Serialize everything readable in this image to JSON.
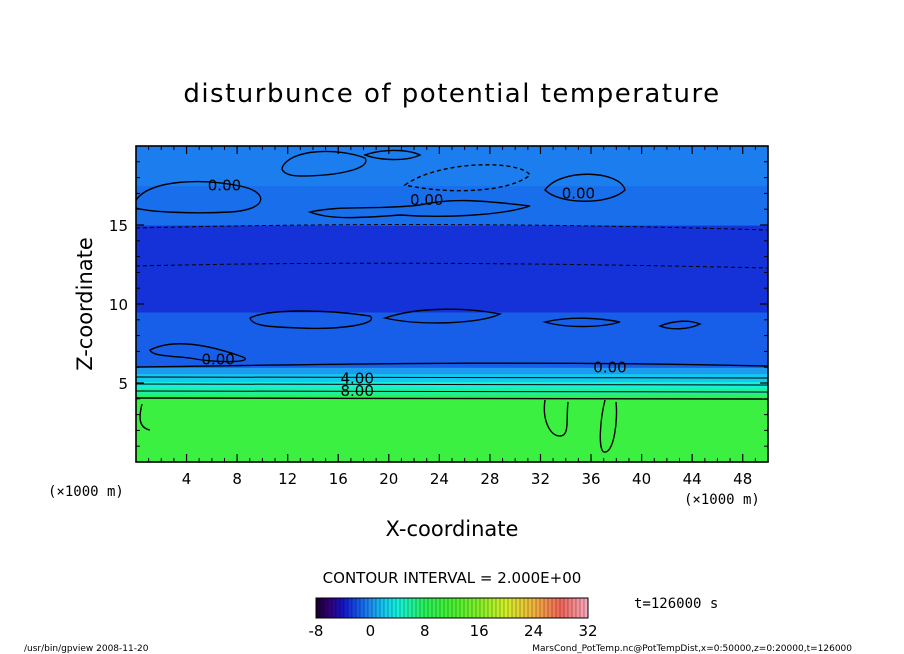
{
  "chart_data": {
    "type": "heatmap",
    "title": "disturbunce of potential temperature",
    "xlabel": "X-coordinate",
    "ylabel": "Z-coordinate",
    "x_unit": "(×1000 m)",
    "xlim": [
      0,
      50
    ],
    "ylim": [
      0,
      20
    ],
    "x_ticks": [
      4,
      8,
      12,
      16,
      20,
      24,
      28,
      32,
      36,
      40,
      44,
      48
    ],
    "y_ticks": [
      5,
      10,
      15
    ],
    "grid": false,
    "contour_interval_text": "CONTOUR INTERVAL = 2.000E+00",
    "contour_labels": [
      {
        "text": "0.00",
        "x": 7.0,
        "z": 17.3
      },
      {
        "text": "0.00",
        "x": 23.0,
        "z": 16.4
      },
      {
        "text": "0.00",
        "x": 35.0,
        "z": 16.8
      },
      {
        "text": "0.00",
        "x": 6.5,
        "z": 6.3
      },
      {
        "text": "0.00",
        "x": 37.5,
        "z": 5.8
      },
      {
        "text": "4.00",
        "x": 17.5,
        "z": 5.1
      },
      {
        "text": "8.00",
        "x": 17.5,
        "z": 4.3
      }
    ],
    "colorbar": {
      "min": -8,
      "max": 32,
      "tick_labels": [
        "-8",
        "0",
        "8",
        "16",
        "24",
        "32"
      ],
      "tick_values": [
        -8,
        0,
        8,
        16,
        24,
        32
      ]
    },
    "field_bands": [
      {
        "z_from": 0.0,
        "z_to": 4.0,
        "value": 10.5
      },
      {
        "z_from": 4.0,
        "z_to": 4.3,
        "value": 8.5
      },
      {
        "z_from": 4.3,
        "z_to": 4.7,
        "value": 6.0
      },
      {
        "z_from": 4.7,
        "z_to": 5.1,
        "value": 4.0
      },
      {
        "z_from": 5.1,
        "z_to": 5.6,
        "value": 2.0
      },
      {
        "z_from": 5.6,
        "z_to": 6.0,
        "value": 0.5
      },
      {
        "z_from": 6.0,
        "z_to": 9.5,
        "value": -1.5
      },
      {
        "z_from": 9.5,
        "z_to": 15.0,
        "value": -3.0
      },
      {
        "z_from": 15.0,
        "z_to": 17.5,
        "value": -1.0
      },
      {
        "z_from": 17.5,
        "z_to": 20.0,
        "value": -0.5
      }
    ],
    "time_label": "t=126000 s"
  },
  "footer": {
    "left": "/usr/bin/gpview  2008-11-20",
    "right": "MarsCond_PotTemp.nc@PotTempDist,x=0:50000,z=0:20000,t=126000"
  }
}
